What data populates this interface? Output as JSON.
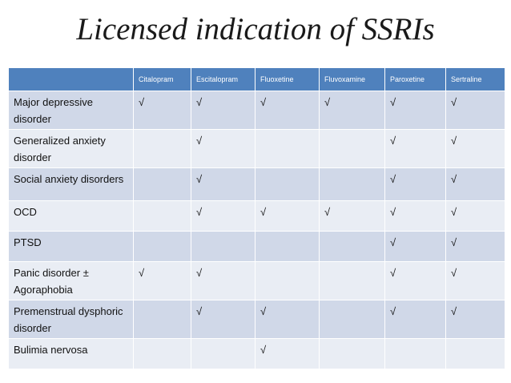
{
  "slide": {
    "title": "Licensed indication of SSRIs"
  },
  "table": {
    "columns": [
      "",
      "Citalopram",
      "Escitalopram",
      "Fluoxetine",
      "Fluvoxamine",
      "Paroxetine",
      "Sertraline"
    ],
    "rows": [
      {
        "label": "Major depressive disorder",
        "cells": [
          "√",
          "√",
          "√",
          "√",
          "√",
          "√"
        ]
      },
      {
        "label": "Generalized anxiety disorder",
        "cells": [
          "",
          "√",
          "",
          "",
          "√",
          "√"
        ]
      },
      {
        "label": "Social anxiety disorders",
        "cells": [
          "",
          "√",
          "",
          "",
          "√",
          "√"
        ]
      },
      {
        "label": "OCD",
        "cells": [
          "",
          "√",
          "√",
          "√",
          "√",
          "√"
        ]
      },
      {
        "label": "PTSD",
        "cells": [
          "",
          "",
          "",
          "",
          "√",
          "√"
        ]
      },
      {
        "label": "Panic disorder ± Agoraphobia",
        "cells": [
          "√",
          "√",
          "",
          "",
          "√",
          "√"
        ]
      },
      {
        "label": "Premenstrual dysphoric disorder",
        "cells": [
          "",
          "√",
          "√",
          "",
          "√",
          "√"
        ]
      },
      {
        "label": "Bulimia nervosa",
        "cells": [
          "",
          "",
          "√",
          "",
          "",
          ""
        ]
      }
    ]
  },
  "colors": {
    "header_bg": "#4f81bd",
    "row_odd_bg": "#d0d8e8",
    "row_even_bg": "#e9edf4"
  }
}
